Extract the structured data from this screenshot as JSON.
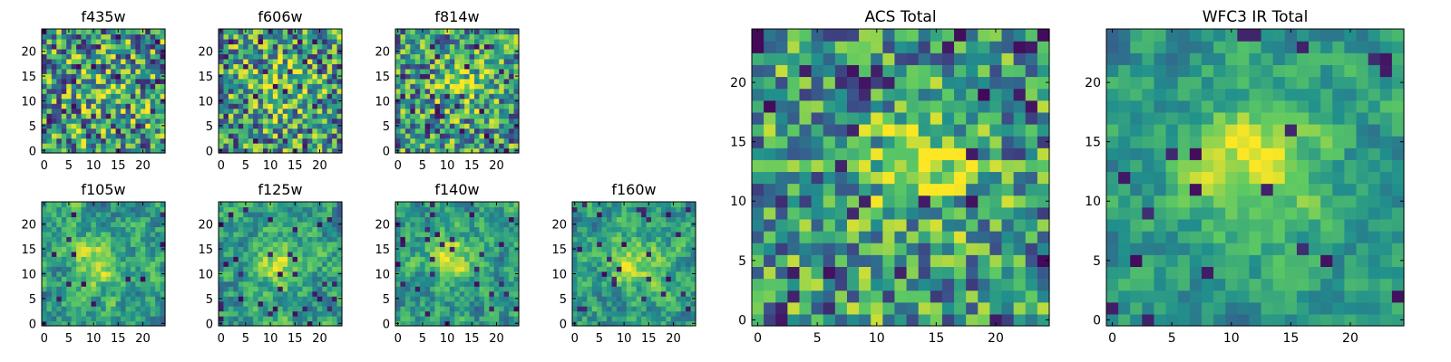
{
  "colormap": [
    "#440154",
    "#3b528b",
    "#21908d",
    "#5dc963",
    "#fde725"
  ],
  "frame_color": "#000000",
  "chart_data": [
    {
      "type": "heatmap",
      "title": "f435w",
      "grid": 25,
      "xticks": [
        0,
        5,
        10,
        15,
        20
      ],
      "yticks": [
        0,
        5,
        10,
        15,
        20
      ],
      "xlim": [
        -0.5,
        24.5
      ],
      "ylim": [
        -0.5,
        24.5
      ],
      "seed": 11,
      "noise": 0.9,
      "peak": 0.25,
      "cx": 12,
      "cy": 12,
      "sigma": 4,
      "outliers": 0.06,
      "block": 1
    },
    {
      "type": "heatmap",
      "title": "f606w",
      "grid": 25,
      "xticks": [
        0,
        5,
        10,
        15,
        20
      ],
      "yticks": [
        0,
        5,
        10,
        15,
        20
      ],
      "xlim": [
        -0.5,
        24.5
      ],
      "ylim": [
        -0.5,
        24.5
      ],
      "seed": 23,
      "noise": 0.85,
      "peak": 0.35,
      "cx": 12,
      "cy": 13,
      "sigma": 4,
      "outliers": 0.05,
      "block": 1
    },
    {
      "type": "heatmap",
      "title": "f814w",
      "grid": 25,
      "xticks": [
        0,
        5,
        10,
        15,
        20
      ],
      "yticks": [
        0,
        5,
        10,
        15,
        20
      ],
      "xlim": [
        -0.5,
        24.5
      ],
      "ylim": [
        -0.5,
        24.5
      ],
      "seed": 37,
      "noise": 0.8,
      "peak": 0.45,
      "cx": 13,
      "cy": 13,
      "sigma": 3.5,
      "outliers": 0.05,
      "block": 1
    },
    {
      "type": "heatmap",
      "title": "f105w",
      "grid": 25,
      "xticks": [
        0,
        5,
        10,
        15,
        20
      ],
      "yticks": [
        0,
        5,
        10,
        15,
        20
      ],
      "xlim": [
        -0.5,
        24.5
      ],
      "ylim": [
        -0.5,
        24.5
      ],
      "seed": 41,
      "noise": 0.75,
      "peak": 0.55,
      "cx": 11,
      "cy": 12,
      "sigma": 3.5,
      "outliers": 0.03,
      "block": 2
    },
    {
      "type": "heatmap",
      "title": "f125w",
      "grid": 25,
      "xticks": [
        0,
        5,
        10,
        15,
        20
      ],
      "yticks": [
        0,
        5,
        10,
        15,
        20
      ],
      "xlim": [
        -0.5,
        24.5
      ],
      "ylim": [
        -0.5,
        24.5
      ],
      "seed": 53,
      "noise": 0.75,
      "peak": 0.45,
      "cx": 12,
      "cy": 12,
      "sigma": 4,
      "outliers": 0.04,
      "block": 2
    },
    {
      "type": "heatmap",
      "title": "f140w",
      "grid": 25,
      "xticks": [
        0,
        5,
        10,
        15,
        20
      ],
      "yticks": [
        0,
        5,
        10,
        15,
        20
      ],
      "xlim": [
        -0.5,
        24.5
      ],
      "ylim": [
        -0.5,
        24.5
      ],
      "seed": 67,
      "noise": 0.7,
      "peak": 0.6,
      "cx": 11,
      "cy": 14,
      "sigma": 3,
      "outliers": 0.04,
      "block": 2
    },
    {
      "type": "heatmap",
      "title": "f160w",
      "grid": 25,
      "xticks": [
        0,
        5,
        10,
        15,
        20
      ],
      "yticks": [
        0,
        5,
        10,
        15,
        20
      ],
      "xlim": [
        -0.5,
        24.5
      ],
      "ylim": [
        -0.5,
        24.5
      ],
      "seed": 79,
      "noise": 0.7,
      "peak": 0.6,
      "cx": 12,
      "cy": 12,
      "sigma": 3.5,
      "outliers": 0.04,
      "block": 2
    },
    {
      "type": "heatmap",
      "title": "ACS Total",
      "grid": 25,
      "xticks": [
        0,
        5,
        10,
        15,
        20
      ],
      "yticks": [
        0,
        5,
        10,
        15,
        20
      ],
      "xlim": [
        -0.5,
        24.5
      ],
      "ylim": [
        -0.5,
        24.5
      ],
      "seed": 91,
      "noise": 0.75,
      "peak": 0.6,
      "cx": 14,
      "cy": 13,
      "sigma": 3,
      "outliers": 0.05,
      "block": 1
    },
    {
      "type": "heatmap",
      "title": "WFC3 IR Total",
      "grid": 25,
      "xticks": [
        0,
        5,
        10,
        15,
        20
      ],
      "yticks": [
        0,
        5,
        10,
        15,
        20
      ],
      "xlim": [
        -0.5,
        24.5
      ],
      "ylim": [
        -0.5,
        24.5
      ],
      "seed": 103,
      "noise": 0.55,
      "peak": 0.75,
      "cx": 12,
      "cy": 13,
      "sigma": 3.5,
      "outliers": 0.03,
      "block": 2
    }
  ]
}
